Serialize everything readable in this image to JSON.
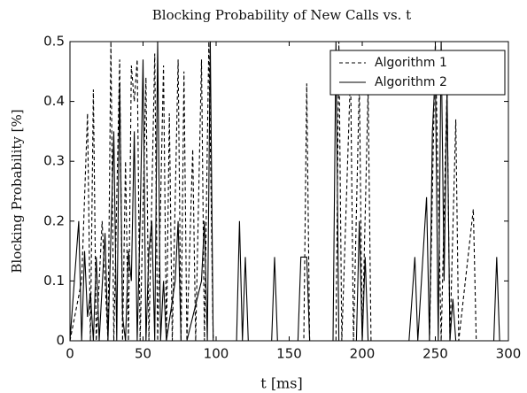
{
  "chart_data": {
    "type": "line",
    "title": "Blocking Probability of New Calls vs. t",
    "x_label": "t [ms]",
    "y_label": "Blocking Probability [%]",
    "xlim": [
      0,
      300
    ],
    "xticks": [
      0,
      50,
      100,
      150,
      200,
      250,
      300
    ],
    "ylim": [
      0,
      0.5
    ],
    "yticks": [
      0,
      0.1,
      0.2,
      0.3,
      0.4,
      0.5
    ],
    "legend": "upper right",
    "series": [
      {
        "name": "Algorithm 1",
        "color": "#000000",
        "dash": true,
        "x": [
          0,
          8,
          12,
          14,
          16,
          18,
          22,
          26,
          28,
          30,
          34,
          36,
          38,
          40,
          42,
          44,
          46,
          48,
          52,
          54,
          58,
          60,
          64,
          66,
          68,
          70,
          74,
          76,
          78,
          80,
          84,
          86,
          90,
          92,
          95,
          98,
          120,
          160,
          162,
          164,
          182,
          184,
          186,
          192,
          194,
          198,
          200,
          204,
          206,
          210,
          246,
          250,
          254,
          258,
          260,
          264,
          266,
          276,
          278,
          300
        ],
        "values": [
          0,
          0.1,
          0.38,
          0,
          0.42,
          0,
          0.2,
          0,
          0.5,
          0,
          0.47,
          0,
          0.3,
          0,
          0.46,
          0.4,
          0.47,
          0,
          0.44,
          0,
          0.48,
          0,
          0.46,
          0,
          0.38,
          0,
          0.47,
          0,
          0.45,
          0,
          0.32,
          0,
          0.47,
          0,
          0.5,
          0,
          0,
          0,
          0.43,
          0,
          0,
          0.5,
          0,
          0.45,
          0,
          0.43,
          0,
          0.42,
          0,
          0,
          0,
          0.5,
          0,
          0.42,
          0,
          0.37,
          0,
          0.22,
          0,
          0
        ]
      },
      {
        "name": "Algorithm 2",
        "color": "#000000",
        "dash": false,
        "x": [
          0,
          6,
          8,
          10,
          12,
          14,
          16,
          18,
          20,
          24,
          26,
          30,
          32,
          34,
          36,
          38,
          40,
          42,
          44,
          46,
          48,
          50,
          52,
          54,
          56,
          58,
          60,
          62,
          64,
          66,
          72,
          74,
          76,
          80,
          90,
          92,
          94,
          96,
          98,
          114,
          116,
          118,
          120,
          122,
          138,
          140,
          142,
          156,
          158,
          162,
          164,
          180,
          182,
          184,
          196,
          198,
          200,
          202,
          204,
          232,
          236,
          238,
          244,
          246,
          248,
          250,
          252,
          254,
          256,
          258,
          260,
          262,
          264,
          290,
          292,
          294,
          300
        ],
        "values": [
          0,
          0.2,
          0,
          0.15,
          0.04,
          0.08,
          0,
          0.14,
          0,
          0.18,
          0,
          0.35,
          0,
          0.43,
          0.04,
          0,
          0.15,
          0.1,
          0.35,
          0,
          0.2,
          0.47,
          0,
          0.15,
          0.2,
          0,
          0.5,
          0,
          0.1,
          0,
          0.1,
          0.2,
          0,
          0,
          0.1,
          0.2,
          0,
          0.5,
          0,
          0,
          0.2,
          0,
          0.14,
          0,
          0,
          0.14,
          0,
          0,
          0.14,
          0.14,
          0,
          0,
          0.5,
          0,
          0,
          0.2,
          0,
          0.14,
          0,
          0,
          0.14,
          0,
          0.24,
          0,
          0.35,
          0.45,
          0,
          0.5,
          0.1,
          0.42,
          0,
          0.07,
          0,
          0,
          0.14,
          0,
          0
        ]
      }
    ]
  }
}
